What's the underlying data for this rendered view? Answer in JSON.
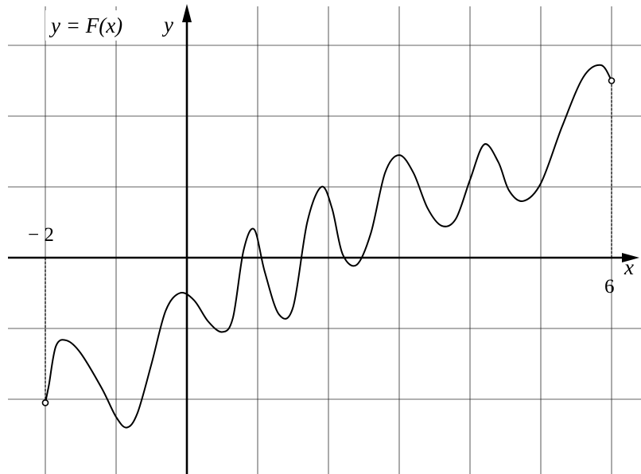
{
  "chart_data": {
    "type": "line",
    "title": "y = F(x)",
    "xlabel": "x",
    "ylabel": "y",
    "xlim": [
      -2.6,
      6.3
    ],
    "ylim": [
      -3.1,
      3.6
    ],
    "grid": true,
    "tick_labels": [
      {
        "label": "− 2",
        "x": -2
      },
      {
        "label": "6",
        "x": 6
      }
    ],
    "series": [
      {
        "domain": [
          -2,
          6
        ],
        "endpoints": "open",
        "points": [
          [
            -2.0,
            -2.05
          ],
          [
            -1.95,
            -1.8
          ],
          [
            -1.85,
            -1.25
          ],
          [
            -1.7,
            -1.17
          ],
          [
            -1.5,
            -1.35
          ],
          [
            -1.2,
            -1.85
          ],
          [
            -1.0,
            -2.25
          ],
          [
            -0.85,
            -2.4
          ],
          [
            -0.7,
            -2.2
          ],
          [
            -0.5,
            -1.5
          ],
          [
            -0.3,
            -0.75
          ],
          [
            -0.1,
            -0.5
          ],
          [
            0.1,
            -0.6
          ],
          [
            0.3,
            -0.9
          ],
          [
            0.5,
            -1.05
          ],
          [
            0.65,
            -0.85
          ],
          [
            0.8,
            0.1
          ],
          [
            0.95,
            0.4
          ],
          [
            1.1,
            -0.2
          ],
          [
            1.3,
            -0.8
          ],
          [
            1.5,
            -0.7
          ],
          [
            1.7,
            0.5
          ],
          [
            1.9,
            1.0
          ],
          [
            2.05,
            0.7
          ],
          [
            2.2,
            0.05
          ],
          [
            2.4,
            -0.1
          ],
          [
            2.6,
            0.35
          ],
          [
            2.8,
            1.2
          ],
          [
            3.0,
            1.45
          ],
          [
            3.2,
            1.2
          ],
          [
            3.4,
            0.7
          ],
          [
            3.6,
            0.45
          ],
          [
            3.8,
            0.55
          ],
          [
            4.0,
            1.1
          ],
          [
            4.2,
            1.6
          ],
          [
            4.4,
            1.35
          ],
          [
            4.55,
            0.95
          ],
          [
            4.75,
            0.8
          ],
          [
            5.0,
            1.05
          ],
          [
            5.3,
            1.85
          ],
          [
            5.6,
            2.55
          ],
          [
            5.85,
            2.72
          ],
          [
            6.0,
            2.5
          ]
        ]
      }
    ]
  }
}
